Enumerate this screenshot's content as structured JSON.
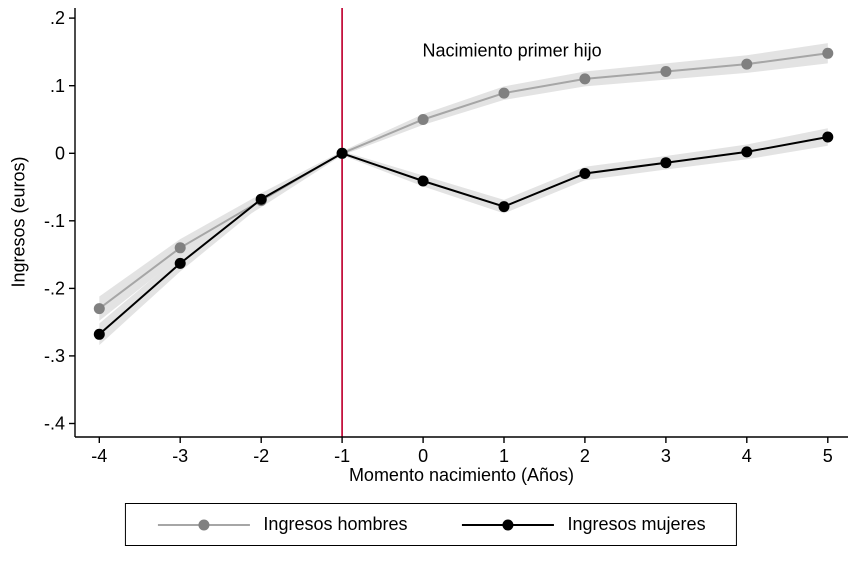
{
  "figure": {
    "background": "#ffffff"
  },
  "chart_data": {
    "type": "line",
    "title": "",
    "annotation": {
      "text": "Nacimiento primer hijo",
      "x": 1.1,
      "y": 0.152
    },
    "xlabel": "Momento nacimiento (Años)",
    "ylabel": "Ingresos (euros)",
    "x": [
      -4,
      -3,
      -2,
      -1,
      0,
      1,
      2,
      3,
      4,
      5
    ],
    "series": [
      {
        "name": "Ingresos hombres",
        "color": "#a6a6a6",
        "marker_color": "#808080",
        "values": [
          -0.23,
          -0.14,
          -0.07,
          0,
          0.05,
          0.089,
          0.11,
          0.121,
          0.132,
          0.148
        ],
        "band": [
          0.018,
          0.013,
          0.01,
          0.003,
          0.008,
          0.01,
          0.011,
          0.012,
          0.013,
          0.015
        ]
      },
      {
        "name": "Ingresos mujeres",
        "color": "#000000",
        "marker_color": "#000000",
        "values": [
          -0.268,
          -0.163,
          -0.068,
          0,
          -0.041,
          -0.079,
          -0.03,
          -0.014,
          0.002,
          0.024
        ],
        "band": [
          0.016,
          0.012,
          0.009,
          0.003,
          0.008,
          0.01,
          0.01,
          0.01,
          0.011,
          0.013
        ]
      }
    ],
    "xlim": [
      -4.3,
      5.25
    ],
    "ylim": [
      -0.42,
      0.215
    ],
    "xticks": [
      -4,
      -3,
      -2,
      -1,
      0,
      1,
      2,
      3,
      4,
      5
    ],
    "yticks": [
      0.2,
      0.1,
      0,
      -0.1,
      -0.2,
      -0.3,
      -0.4
    ],
    "ytick_labels": [
      ".2",
      ".1",
      "0",
      "-.1",
      "-.2",
      "-.3",
      "-.4"
    ],
    "vline": {
      "x": -1,
      "color": "#c10534"
    },
    "band_color": "#e3e3e3",
    "grid": false,
    "legend_position": "bottom"
  }
}
